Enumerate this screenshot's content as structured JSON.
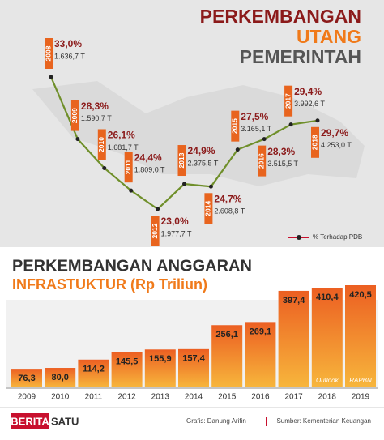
{
  "chart_data": [
    {
      "type": "line",
      "title": [
        "PERKEMBANGAN",
        "UTANG",
        "PEMERINTAH"
      ],
      "categories": [
        "2008",
        "2009",
        "2010",
        "2011",
        "2012",
        "2013",
        "2014",
        "2015",
        "2016",
        "2017",
        "2018"
      ],
      "series": [
        {
          "name": "% Terhadap PDB",
          "color": "#6f8f2a",
          "values": [
            33.0,
            28.3,
            26.1,
            24.4,
            23.0,
            24.9,
            24.7,
            27.5,
            28.3,
            29.4,
            29.7
          ],
          "value_labels": [
            "33,0%",
            "28,3%",
            "26,1%",
            "24,4%",
            "23,0%",
            "24,9%",
            "24,7%",
            "27,5%",
            "28,3%",
            "29,4%",
            "29,7%"
          ],
          "amount_labels": [
            "1.636,7 T",
            "1.590,7 T",
            "1.681,7 T",
            "1.809,0 T",
            "1.977,7 T",
            "2.375,5 T",
            "2.608,8 T",
            "3.165,1 T",
            "3.515,5 T",
            "3.992,6 T",
            "4.253,0 T"
          ]
        }
      ],
      "legend": "bottom-right"
    },
    {
      "type": "bar",
      "title": "PERKEMBANGAN ANGGARAN",
      "subtitle": "INFRASTUKTUR (Rp Triliun)",
      "categories": [
        "2009",
        "2010",
        "2011",
        "2012",
        "2013",
        "2014",
        "2015",
        "2016",
        "2017",
        "2018",
        "2019"
      ],
      "values": [
        76.3,
        80.0,
        114.2,
        145.5,
        155.9,
        157.4,
        256.1,
        269.1,
        397.4,
        410.4,
        420.5
      ],
      "value_labels": [
        "76,3",
        "80,0",
        "114,2",
        "145,5",
        "155,9",
        "157,4",
        "256,1",
        "269,1",
        "397,4",
        "410,4",
        "420,5"
      ],
      "value_notes": [
        null,
        null,
        null,
        null,
        null,
        null,
        null,
        null,
        null,
        "Outlook",
        "RAPBN"
      ],
      "color": "#ec5f22"
    }
  ],
  "footer": {
    "logo": [
      "BERITA",
      "SATU"
    ],
    "credit": "Grafis: Danung Arifin",
    "source": "Sumber: Kementerian Keuangan"
  }
}
